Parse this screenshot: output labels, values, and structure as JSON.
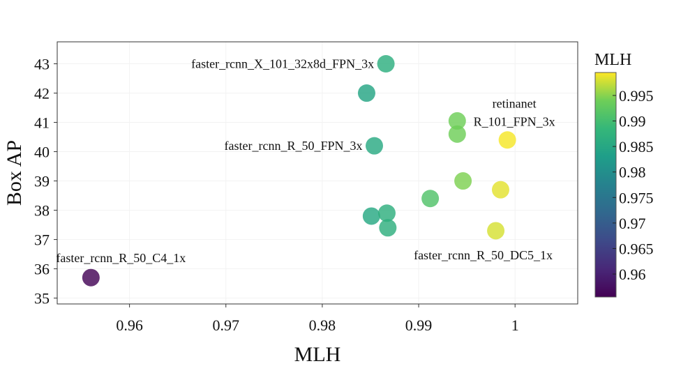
{
  "chart_data": {
    "type": "scatter",
    "title": "",
    "xlabel": "MLH",
    "ylabel": "Box AP",
    "xlim": [
      0.9525,
      1.0065
    ],
    "ylim": [
      34.8,
      43.75
    ],
    "x_ticks": [
      0.96,
      0.97,
      0.98,
      0.99,
      1
    ],
    "x_tick_labels": [
      "0.96",
      "0.97",
      "0.98",
      "0.99",
      "1"
    ],
    "y_ticks": [
      35,
      36,
      37,
      38,
      39,
      40,
      41,
      42,
      43
    ],
    "y_tick_labels": [
      "35",
      "36",
      "37",
      "38",
      "39",
      "40",
      "41",
      "42",
      "43"
    ],
    "grid": true,
    "points": [
      {
        "x": 0.956,
        "y": 35.7,
        "color": 0.956
      },
      {
        "x": 0.9866,
        "y": 43.0,
        "color": 0.9866
      },
      {
        "x": 0.9846,
        "y": 42.0,
        "color": 0.9846
      },
      {
        "x": 0.9854,
        "y": 40.2,
        "color": 0.9854
      },
      {
        "x": 0.9851,
        "y": 37.8,
        "color": 0.9851
      },
      {
        "x": 0.9867,
        "y": 37.9,
        "color": 0.9867
      },
      {
        "x": 0.9868,
        "y": 37.4,
        "color": 0.9868
      },
      {
        "x": 0.9912,
        "y": 38.4,
        "color": 0.9912
      },
      {
        "x": 0.994,
        "y": 41.05,
        "color": 0.994
      },
      {
        "x": 0.994,
        "y": 40.6,
        "color": 0.994
      },
      {
        "x": 0.9946,
        "y": 39.0,
        "color": 0.9946
      },
      {
        "x": 0.9992,
        "y": 40.4,
        "color": 0.9992
      },
      {
        "x": 0.9985,
        "y": 38.7,
        "color": 0.9985
      },
      {
        "x": 0.998,
        "y": 37.3,
        "color": 0.998
      }
    ],
    "annotations": [
      {
        "text": "faster_rcnn_X_101_32x8d_FPN_3x",
        "x": 0.9866,
        "y": 43.0,
        "anchor": "left-of"
      },
      {
        "text": "faster_rcnn_R_50_FPN_3x",
        "x": 0.9854,
        "y": 40.2,
        "anchor": "left-of"
      },
      {
        "lines": [
          "retinanet",
          "R_101_FPN_3x"
        ],
        "x": 0.9992,
        "y": 40.4,
        "anchor": "above"
      },
      {
        "text": "faster_rcnn_R_50_C4_1x",
        "x": 0.956,
        "y": 35.7,
        "anchor": "above"
      },
      {
        "text": "faster_rcnn_R_50_DC5_1x",
        "x": 0.998,
        "y": 37.3,
        "anchor": "below"
      }
    ],
    "colorbar": {
      "label": "MLH",
      "colormap": "viridis",
      "range": [
        0.9555,
        0.9995
      ],
      "ticks": [
        0.96,
        0.965,
        0.97,
        0.975,
        0.98,
        0.985,
        0.99,
        0.995
      ],
      "tick_labels": [
        "0.96",
        "0.965",
        "0.97",
        "0.975",
        "0.98",
        "0.985",
        "0.99",
        "0.995"
      ]
    }
  }
}
